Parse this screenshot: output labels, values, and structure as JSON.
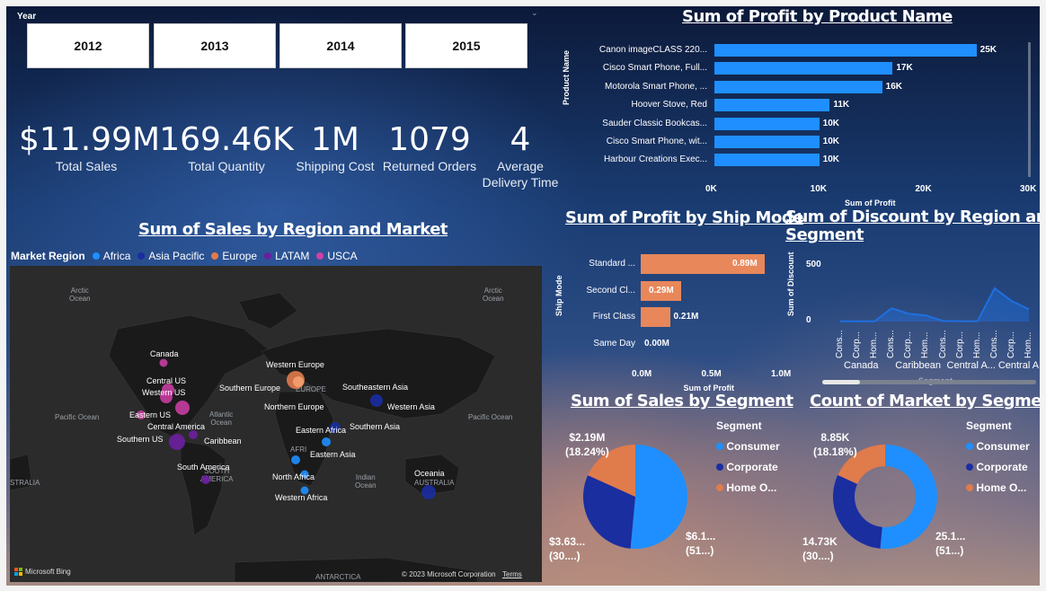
{
  "year_slicer": {
    "label": "Year",
    "years": [
      "2012",
      "2013",
      "2014",
      "2015"
    ]
  },
  "kpis": [
    {
      "value": "$11.99M",
      "label": "Total Sales"
    },
    {
      "value": "169.46K",
      "label": "Total Quantity"
    },
    {
      "value": "1M",
      "label": "Shipping Cost"
    },
    {
      "value": "1079",
      "label": "Returned Orders"
    },
    {
      "value": "4",
      "label": "Average Delivery Time"
    }
  ],
  "map": {
    "title": "Sum of Sales by Region and Market",
    "legend_title": "Market Region",
    "legend": [
      {
        "name": "Africa",
        "color": "#1f8fff"
      },
      {
        "name": "Asia Pacific",
        "color": "#1a2ea0"
      },
      {
        "name": "Europe",
        "color": "#e07b4c"
      },
      {
        "name": "LATAM",
        "color": "#6b1fa0"
      },
      {
        "name": "USCA",
        "color": "#d13fa8"
      }
    ],
    "oceans": {
      "arctic_left": "Arctic\nOcean",
      "arctic_right": "Arctic\nOcean",
      "pacific_left": "Pacific Ocean",
      "atlantic": "Atlantic\nOcean",
      "indian": "Indian\nOcean",
      "pacific_right": "Pacific Ocean",
      "south_america": "SOUTH\nAMERICA",
      "europe": "EUROPE",
      "africa": "AFRI",
      "australia": "AUSTRALIA",
      "australia_left": "STRALIA",
      "antarctica": "ANTARCTICA"
    },
    "regions": [
      "Canada",
      "Central US",
      "Western US",
      "Eastern US",
      "Central America",
      "Southern US",
      "Caribbean",
      "South America",
      "Western Europe",
      "Southern Europe",
      "Northern Europe",
      "Southeastern Asia",
      "Western Asia",
      "Eastern Africa",
      "Southern Asia",
      "Eastern Asia",
      "North Africa",
      "Western Africa",
      "Oceania"
    ],
    "footer_left": "Microsoft Bing",
    "footer_copyright": "© 2023 Microsoft Corporation",
    "footer_terms": "Terms"
  },
  "profit_by_product": {
    "title": "Sum of Profit by Product Name",
    "y_axis_title": "Product Name",
    "x_axis_title": "Sum of Profit",
    "x_ticks": [
      "0K",
      "10K",
      "20K",
      "30K"
    ],
    "rows": [
      {
        "name": "Canon imageCLASS 220...",
        "label": "25K",
        "value": 25000
      },
      {
        "name": "Cisco Smart Phone, Full...",
        "label": "17K",
        "value": 17000
      },
      {
        "name": "Motorola Smart Phone, ...",
        "label": "16K",
        "value": 16000
      },
      {
        "name": "Hoover Stove, Red",
        "label": "11K",
        "value": 11000
      },
      {
        "name": "Sauder Classic Bookcas...",
        "label": "10K",
        "value": 10000
      },
      {
        "name": "Cisco Smart Phone, wit...",
        "label": "10K",
        "value": 10000
      },
      {
        "name": "Harbour Creations Exec...",
        "label": "10K",
        "value": 10000
      }
    ],
    "max": 30000,
    "color": "#1f8fff"
  },
  "profit_by_ship": {
    "title": "Sum of Profit by Ship Mode",
    "y_axis_title": "Ship Mode",
    "x_axis_title": "Sum of Profit",
    "x_ticks": [
      "0.0M",
      "0.5M",
      "1.0M"
    ],
    "rows": [
      {
        "name": "Standard ...",
        "label": "0.89M",
        "value": 0.89
      },
      {
        "name": "Second Cl...",
        "label": "0.29M",
        "value": 0.29
      },
      {
        "name": "First Class",
        "label": "0.21M",
        "value": 0.21
      },
      {
        "name": "Same Day",
        "label": "0.00M",
        "value": 0.0
      }
    ],
    "max": 1.0,
    "color": "#e8875a"
  },
  "discount": {
    "title_line1": "Sum of Discount by Region and",
    "title_line2": "Segment",
    "y_axis_title": "Sum of Discount",
    "x_axis_title": "Segment",
    "y_ticks": [
      "500",
      "0"
    ],
    "segments": [
      "Cons...",
      "Corp...",
      "Hom...",
      "Cons...",
      "Corp...",
      "Hom...",
      "Cons...",
      "Corp...",
      "Hom...",
      "Cons...",
      "Corp...",
      "Hom..."
    ],
    "groups": [
      "Canada",
      "Caribbean",
      "Central A...",
      "Central A..."
    ],
    "values": [
      2,
      2,
      2,
      120,
      70,
      55,
      5,
      3,
      3,
      300,
      185,
      110
    ],
    "ymax": 600,
    "color": "#1f6fe0"
  },
  "sales_by_segment": {
    "title": "Sum of Sales by Segment",
    "legend_title": "Segment",
    "legend": [
      "Consumer",
      "Corporate",
      "Home O..."
    ],
    "colors": [
      "#1f8fff",
      "#1a2ea0",
      "#e07b4c"
    ],
    "values": [
      51.5,
      30.3,
      18.24
    ],
    "labels": {
      "home_office": "$2.19M",
      "home_office_pct": "(18.24%)",
      "consumer": "$6.1...",
      "consumer_pct": "(51...)",
      "corporate": "$3.63...",
      "corporate_pct": "(30....)"
    }
  },
  "market_by_segment": {
    "title": "Count of Market by Segment",
    "legend_title": "Segment",
    "legend": [
      "Consumer",
      "Corporate",
      "Home O..."
    ],
    "colors": [
      "#1f8fff",
      "#1a2ea0",
      "#e07b4c"
    ],
    "values": [
      51.5,
      30.3,
      18.18
    ],
    "labels": {
      "home_office": "8.85K",
      "home_office_pct": "(18.18%)",
      "consumer": "25.1...",
      "consumer_pct": "(51...)",
      "corporate": "14.73K",
      "corporate_pct": "(30....)"
    }
  }
}
